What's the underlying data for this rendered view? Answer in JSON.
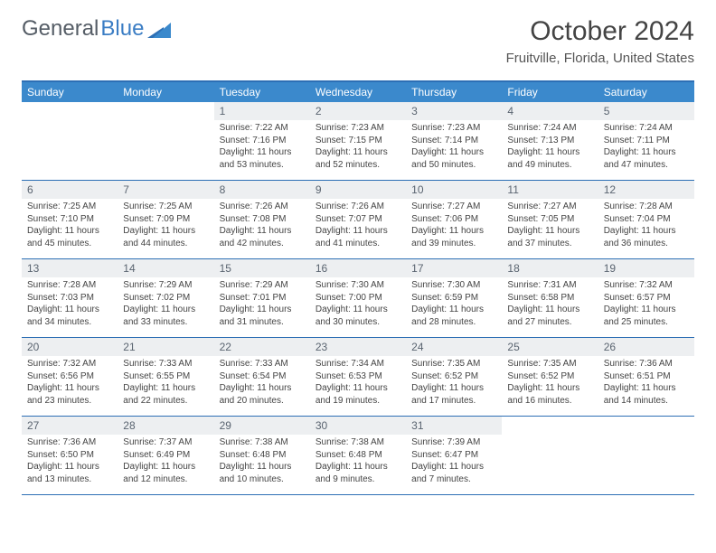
{
  "logo": {
    "text1": "General",
    "text2": "Blue"
  },
  "header": {
    "title": "October 2024",
    "location": "Fruitville, Florida, United States"
  },
  "colors": {
    "header_bg": "#3b89cc",
    "header_border": "#2d6fb5",
    "daynum_bg": "#edeff1",
    "logo_gray": "#555d66",
    "logo_blue": "#3b7dc4"
  },
  "day_names": [
    "Sunday",
    "Monday",
    "Tuesday",
    "Wednesday",
    "Thursday",
    "Friday",
    "Saturday"
  ],
  "weeks": [
    [
      null,
      null,
      {
        "n": "1",
        "sr": "Sunrise: 7:22 AM",
        "ss": "Sunset: 7:16 PM",
        "d1": "Daylight: 11 hours",
        "d2": "and 53 minutes."
      },
      {
        "n": "2",
        "sr": "Sunrise: 7:23 AM",
        "ss": "Sunset: 7:15 PM",
        "d1": "Daylight: 11 hours",
        "d2": "and 52 minutes."
      },
      {
        "n": "3",
        "sr": "Sunrise: 7:23 AM",
        "ss": "Sunset: 7:14 PM",
        "d1": "Daylight: 11 hours",
        "d2": "and 50 minutes."
      },
      {
        "n": "4",
        "sr": "Sunrise: 7:24 AM",
        "ss": "Sunset: 7:13 PM",
        "d1": "Daylight: 11 hours",
        "d2": "and 49 minutes."
      },
      {
        "n": "5",
        "sr": "Sunrise: 7:24 AM",
        "ss": "Sunset: 7:11 PM",
        "d1": "Daylight: 11 hours",
        "d2": "and 47 minutes."
      }
    ],
    [
      {
        "n": "6",
        "sr": "Sunrise: 7:25 AM",
        "ss": "Sunset: 7:10 PM",
        "d1": "Daylight: 11 hours",
        "d2": "and 45 minutes."
      },
      {
        "n": "7",
        "sr": "Sunrise: 7:25 AM",
        "ss": "Sunset: 7:09 PM",
        "d1": "Daylight: 11 hours",
        "d2": "and 44 minutes."
      },
      {
        "n": "8",
        "sr": "Sunrise: 7:26 AM",
        "ss": "Sunset: 7:08 PM",
        "d1": "Daylight: 11 hours",
        "d2": "and 42 minutes."
      },
      {
        "n": "9",
        "sr": "Sunrise: 7:26 AM",
        "ss": "Sunset: 7:07 PM",
        "d1": "Daylight: 11 hours",
        "d2": "and 41 minutes."
      },
      {
        "n": "10",
        "sr": "Sunrise: 7:27 AM",
        "ss": "Sunset: 7:06 PM",
        "d1": "Daylight: 11 hours",
        "d2": "and 39 minutes."
      },
      {
        "n": "11",
        "sr": "Sunrise: 7:27 AM",
        "ss": "Sunset: 7:05 PM",
        "d1": "Daylight: 11 hours",
        "d2": "and 37 minutes."
      },
      {
        "n": "12",
        "sr": "Sunrise: 7:28 AM",
        "ss": "Sunset: 7:04 PM",
        "d1": "Daylight: 11 hours",
        "d2": "and 36 minutes."
      }
    ],
    [
      {
        "n": "13",
        "sr": "Sunrise: 7:28 AM",
        "ss": "Sunset: 7:03 PM",
        "d1": "Daylight: 11 hours",
        "d2": "and 34 minutes."
      },
      {
        "n": "14",
        "sr": "Sunrise: 7:29 AM",
        "ss": "Sunset: 7:02 PM",
        "d1": "Daylight: 11 hours",
        "d2": "and 33 minutes."
      },
      {
        "n": "15",
        "sr": "Sunrise: 7:29 AM",
        "ss": "Sunset: 7:01 PM",
        "d1": "Daylight: 11 hours",
        "d2": "and 31 minutes."
      },
      {
        "n": "16",
        "sr": "Sunrise: 7:30 AM",
        "ss": "Sunset: 7:00 PM",
        "d1": "Daylight: 11 hours",
        "d2": "and 30 minutes."
      },
      {
        "n": "17",
        "sr": "Sunrise: 7:30 AM",
        "ss": "Sunset: 6:59 PM",
        "d1": "Daylight: 11 hours",
        "d2": "and 28 minutes."
      },
      {
        "n": "18",
        "sr": "Sunrise: 7:31 AM",
        "ss": "Sunset: 6:58 PM",
        "d1": "Daylight: 11 hours",
        "d2": "and 27 minutes."
      },
      {
        "n": "19",
        "sr": "Sunrise: 7:32 AM",
        "ss": "Sunset: 6:57 PM",
        "d1": "Daylight: 11 hours",
        "d2": "and 25 minutes."
      }
    ],
    [
      {
        "n": "20",
        "sr": "Sunrise: 7:32 AM",
        "ss": "Sunset: 6:56 PM",
        "d1": "Daylight: 11 hours",
        "d2": "and 23 minutes."
      },
      {
        "n": "21",
        "sr": "Sunrise: 7:33 AM",
        "ss": "Sunset: 6:55 PM",
        "d1": "Daylight: 11 hours",
        "d2": "and 22 minutes."
      },
      {
        "n": "22",
        "sr": "Sunrise: 7:33 AM",
        "ss": "Sunset: 6:54 PM",
        "d1": "Daylight: 11 hours",
        "d2": "and 20 minutes."
      },
      {
        "n": "23",
        "sr": "Sunrise: 7:34 AM",
        "ss": "Sunset: 6:53 PM",
        "d1": "Daylight: 11 hours",
        "d2": "and 19 minutes."
      },
      {
        "n": "24",
        "sr": "Sunrise: 7:35 AM",
        "ss": "Sunset: 6:52 PM",
        "d1": "Daylight: 11 hours",
        "d2": "and 17 minutes."
      },
      {
        "n": "25",
        "sr": "Sunrise: 7:35 AM",
        "ss": "Sunset: 6:52 PM",
        "d1": "Daylight: 11 hours",
        "d2": "and 16 minutes."
      },
      {
        "n": "26",
        "sr": "Sunrise: 7:36 AM",
        "ss": "Sunset: 6:51 PM",
        "d1": "Daylight: 11 hours",
        "d2": "and 14 minutes."
      }
    ],
    [
      {
        "n": "27",
        "sr": "Sunrise: 7:36 AM",
        "ss": "Sunset: 6:50 PM",
        "d1": "Daylight: 11 hours",
        "d2": "and 13 minutes."
      },
      {
        "n": "28",
        "sr": "Sunrise: 7:37 AM",
        "ss": "Sunset: 6:49 PM",
        "d1": "Daylight: 11 hours",
        "d2": "and 12 minutes."
      },
      {
        "n": "29",
        "sr": "Sunrise: 7:38 AM",
        "ss": "Sunset: 6:48 PM",
        "d1": "Daylight: 11 hours",
        "d2": "and 10 minutes."
      },
      {
        "n": "30",
        "sr": "Sunrise: 7:38 AM",
        "ss": "Sunset: 6:48 PM",
        "d1": "Daylight: 11 hours",
        "d2": "and 9 minutes."
      },
      {
        "n": "31",
        "sr": "Sunrise: 7:39 AM",
        "ss": "Sunset: 6:47 PM",
        "d1": "Daylight: 11 hours",
        "d2": "and 7 minutes."
      },
      null,
      null
    ]
  ]
}
